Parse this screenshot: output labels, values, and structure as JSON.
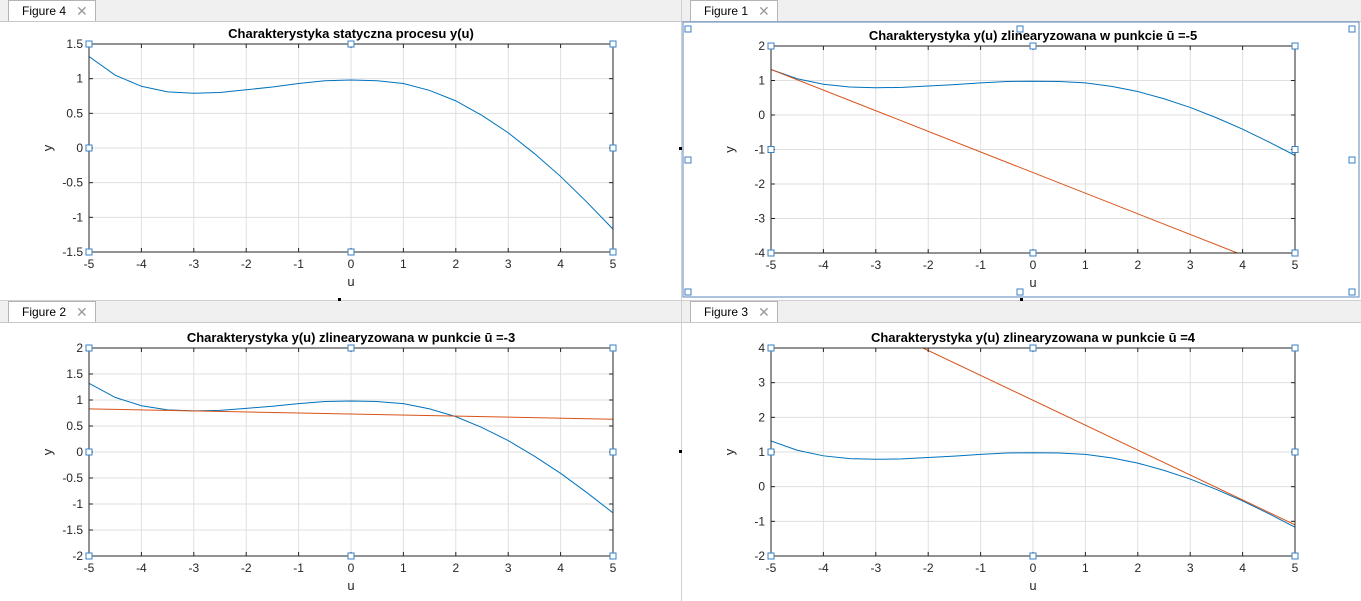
{
  "figures": [
    {
      "tab_label": "Figure 4",
      "tab_close": "✕",
      "selected": false,
      "chart_data": {
        "type": "line",
        "title": "Charakterystyka statyczna procesu y(u)",
        "xlabel": "u",
        "ylabel": "y",
        "xlim": [
          -5,
          5
        ],
        "ylim": [
          -1.5,
          1.5
        ],
        "xticks": [
          -5,
          -4,
          -3,
          -2,
          -1,
          0,
          1,
          2,
          3,
          4,
          5
        ],
        "yticks": [
          -1.5,
          -1,
          -0.5,
          0,
          0.5,
          1,
          1.5
        ],
        "grid": true,
        "series": [
          {
            "kind": "curve",
            "color": "#0072bd",
            "x": [
              -5,
              -4.5,
              -4,
              -3.5,
              -3,
              -2.5,
              -2,
              -1.5,
              -1,
              -0.5,
              0,
              0.5,
              1,
              1.5,
              2,
              2.5,
              3,
              3.5,
              4,
              4.5,
              5
            ],
            "y": [
              1.32,
              1.05,
              0.89,
              0.81,
              0.79,
              0.8,
              0.84,
              0.88,
              0.93,
              0.97,
              0.98,
              0.97,
              0.93,
              0.83,
              0.68,
              0.47,
              0.22,
              -0.08,
              -0.41,
              -0.78,
              -1.17
            ]
          }
        ]
      }
    },
    {
      "tab_label": "Figure 1",
      "tab_close": "✕",
      "selected": true,
      "chart_data": {
        "type": "line",
        "title": "Charakterystyka y(u) zlinearyzowana w punkcie ū =-5",
        "xlabel": "u",
        "ylabel": "y",
        "xlim": [
          -5,
          5
        ],
        "ylim": [
          -4,
          2
        ],
        "xticks": [
          -5,
          -4,
          -3,
          -2,
          -1,
          0,
          1,
          2,
          3,
          4,
          5
        ],
        "yticks": [
          -4,
          -3,
          -2,
          -1,
          0,
          1,
          2
        ],
        "grid": true,
        "series": [
          {
            "kind": "curve",
            "color": "#0072bd",
            "x": [
              -5,
              -4.5,
              -4,
              -3.5,
              -3,
              -2.5,
              -2,
              -1.5,
              -1,
              -0.5,
              0,
              0.5,
              1,
              1.5,
              2,
              2.5,
              3,
              3.5,
              4,
              4.5,
              5
            ],
            "y": [
              1.32,
              1.05,
              0.89,
              0.81,
              0.79,
              0.8,
              0.84,
              0.88,
              0.93,
              0.97,
              0.98,
              0.97,
              0.93,
              0.83,
              0.68,
              0.47,
              0.22,
              -0.08,
              -0.41,
              -0.78,
              -1.17
            ]
          },
          {
            "kind": "tangent",
            "color": "#d95319",
            "x": [
              -5,
              3.9
            ],
            "y": [
              1.32,
              -4.0
            ]
          }
        ]
      }
    },
    {
      "tab_label": "Figure 2",
      "tab_close": "✕",
      "selected": false,
      "chart_data": {
        "type": "line",
        "title": "Charakterystyka y(u) zlinearyzowana w punkcie ū =-3",
        "xlabel": "u",
        "ylabel": "y",
        "xlim": [
          -5,
          5
        ],
        "ylim": [
          -2,
          2
        ],
        "xticks": [
          -5,
          -4,
          -3,
          -2,
          -1,
          0,
          1,
          2,
          3,
          4,
          5
        ],
        "yticks": [
          -2,
          -1.5,
          -1,
          -0.5,
          0,
          0.5,
          1,
          1.5,
          2
        ],
        "grid": true,
        "series": [
          {
            "kind": "curve",
            "color": "#0072bd",
            "x": [
              -5,
              -4.5,
              -4,
              -3.5,
              -3,
              -2.5,
              -2,
              -1.5,
              -1,
              -0.5,
              0,
              0.5,
              1,
              1.5,
              2,
              2.5,
              3,
              3.5,
              4,
              4.5,
              5
            ],
            "y": [
              1.32,
              1.05,
              0.89,
              0.81,
              0.79,
              0.8,
              0.84,
              0.88,
              0.93,
              0.97,
              0.98,
              0.97,
              0.93,
              0.83,
              0.68,
              0.47,
              0.22,
              -0.08,
              -0.41,
              -0.78,
              -1.17
            ]
          },
          {
            "kind": "tangent",
            "color": "#d95319",
            "x": [
              -5,
              5
            ],
            "y": [
              0.83,
              0.63
            ]
          }
        ]
      }
    },
    {
      "tab_label": "Figure 3",
      "tab_close": "✕",
      "selected": false,
      "chart_data": {
        "type": "line",
        "title": "Charakterystyka y(u) zlinearyzowana w punkcie ū =4",
        "xlabel": "u",
        "ylabel": "y",
        "xlim": [
          -5,
          5
        ],
        "ylim": [
          -2,
          4
        ],
        "xticks": [
          -5,
          -4,
          -3,
          -2,
          -1,
          0,
          1,
          2,
          3,
          4,
          5
        ],
        "yticks": [
          -2,
          -1,
          0,
          1,
          2,
          3,
          4
        ],
        "grid": true,
        "series": [
          {
            "kind": "curve",
            "color": "#0072bd",
            "x": [
              -5,
              -4.5,
              -4,
              -3.5,
              -3,
              -2.5,
              -2,
              -1.5,
              -1,
              -0.5,
              0,
              0.5,
              1,
              1.5,
              2,
              2.5,
              3,
              3.5,
              4,
              4.5,
              5
            ],
            "y": [
              1.32,
              1.05,
              0.89,
              0.81,
              0.79,
              0.8,
              0.84,
              0.88,
              0.93,
              0.97,
              0.98,
              0.97,
              0.93,
              0.83,
              0.68,
              0.47,
              0.22,
              -0.08,
              -0.41,
              -0.78,
              -1.17
            ]
          },
          {
            "kind": "tangent",
            "color": "#d95319",
            "x": [
              -2.1,
              5
            ],
            "y": [
              4.0,
              -1.1
            ]
          }
        ]
      }
    }
  ]
}
